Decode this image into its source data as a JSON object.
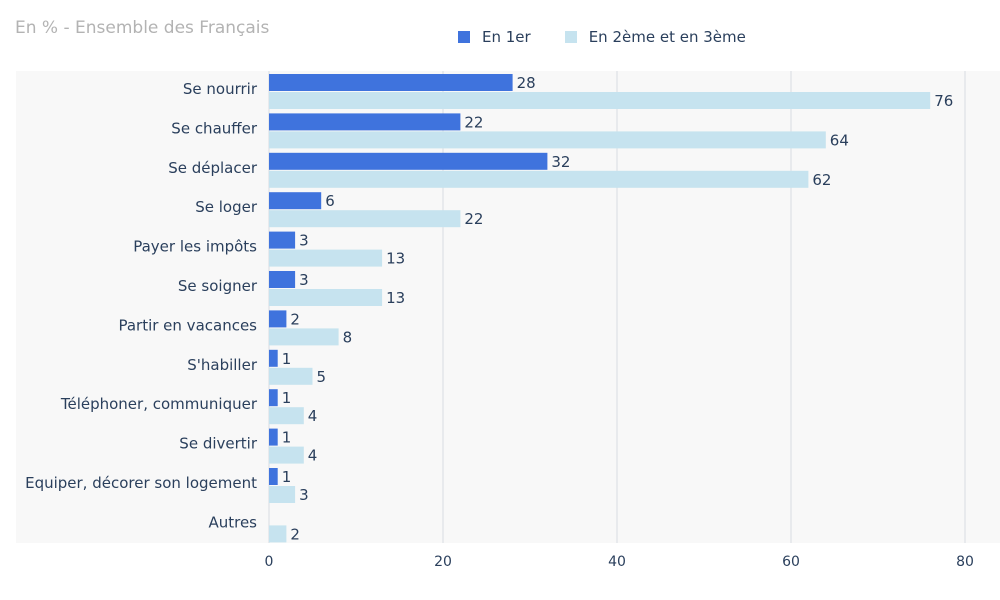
{
  "subtitle": "En % - Ensemble des Français",
  "colors": {
    "first": "#3f73dd",
    "second": "#c6e3ef",
    "grid": "#d9dde2",
    "text": "#2a3f5c"
  },
  "chart_data": {
    "type": "bar",
    "orientation": "horizontal",
    "title": "",
    "xlabel": "",
    "ylabel": "",
    "xlim": [
      0,
      80
    ],
    "xticks": [
      0,
      20,
      40,
      60,
      80
    ],
    "grid": true,
    "legend_position": "top",
    "categories": [
      "Se nourrir",
      "Se chauffer",
      "Se déplacer",
      "Se loger",
      "Payer les impôts",
      "Se soigner",
      "Partir en vacances",
      "S'habiller",
      "Téléphoner, communiquer",
      "Se divertir",
      "Equiper, décorer son logement",
      "Autres"
    ],
    "series": [
      {
        "name": "En 1er",
        "color": "#3f73dd",
        "values": [
          28,
          22,
          32,
          6,
          3,
          3,
          2,
          1,
          1,
          1,
          1,
          null
        ]
      },
      {
        "name": "En 2ème et en 3ème",
        "color": "#c6e3ef",
        "values": [
          76,
          64,
          62,
          22,
          13,
          13,
          8,
          5,
          4,
          4,
          3,
          2
        ]
      }
    ]
  }
}
